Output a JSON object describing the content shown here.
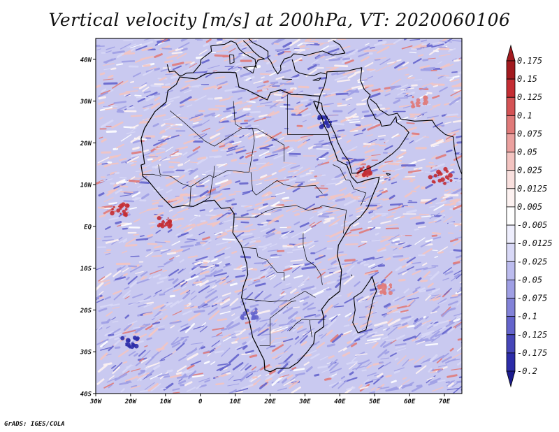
{
  "title": "Vertical velocity [m/s] at 200hPa, VT: 2020060106",
  "credit": "GrADS: IGES/COLA",
  "map": {
    "lon_range": [
      -30,
      75
    ],
    "lat_range": [
      -40,
      45
    ],
    "lat_ticks": [
      "40N",
      "30N",
      "20N",
      "10N",
      "EQ",
      "10S",
      "20S",
      "30S",
      "40S"
    ],
    "lon_ticks": [
      "30W",
      "20W",
      "10W",
      "0",
      "10E",
      "20E",
      "30E",
      "40E",
      "50E",
      "60E",
      "70E"
    ]
  },
  "colorbar": {
    "labels": [
      "0.175",
      "0.15",
      "0.125",
      "0.1",
      "0.075",
      "0.05",
      "0.025",
      "0.0125",
      "0.005",
      "-0.005",
      "-0.0125",
      "-0.025",
      "-0.05",
      "-0.075",
      "-0.1",
      "-0.125",
      "-0.175",
      "-0.2"
    ],
    "colors": [
      "#a21a1f",
      "#c42d33",
      "#d45355",
      "#e07a79",
      "#eba19f",
      "#f3c4c1",
      "#f9e0de",
      "#fdf2f1",
      "#ffffff",
      "#eeeefd",
      "#d8d8f6",
      "#bcbcee",
      "#9f9fe4",
      "#8282d8",
      "#6464cc",
      "#4646b8",
      "#2c2ca8",
      "#1b1b8e"
    ]
  },
  "colors": {
    "land_outline": "#000000",
    "background": "#ffffff"
  }
}
